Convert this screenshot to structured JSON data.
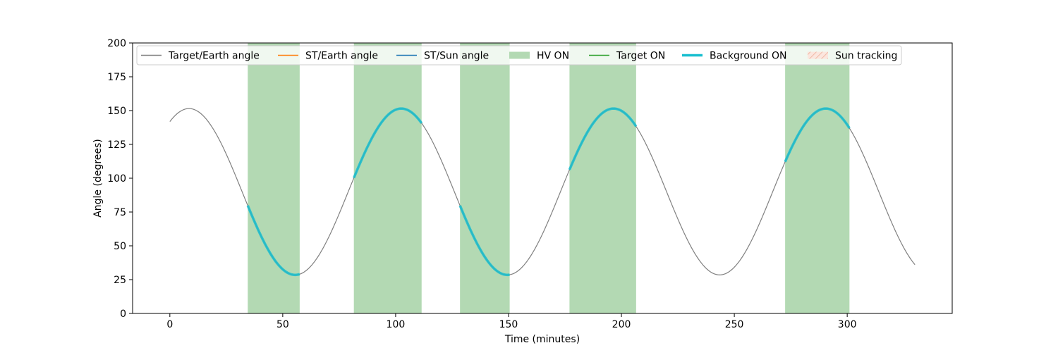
{
  "chart_data": {
    "type": "line",
    "title": "",
    "xlabel": "Time (minutes)",
    "ylabel": "Angle (degrees)",
    "xlim": [
      -16.5,
      346.5
    ],
    "ylim": [
      0,
      200
    ],
    "x_ticks": [
      0,
      50,
      100,
      150,
      200,
      250,
      300
    ],
    "y_ticks": [
      0,
      25,
      50,
      75,
      100,
      125,
      150,
      175,
      200
    ],
    "grid": false,
    "legend_position": "top",
    "legend": [
      {
        "label": "Target/Earth angle",
        "kind": "line",
        "color": "#808080"
      },
      {
        "label": "ST/Earth angle",
        "kind": "line",
        "color": "#ff7f0e"
      },
      {
        "label": "ST/Sun angle",
        "kind": "line",
        "color": "#1f77b4"
      },
      {
        "label": "HV ON",
        "kind": "patch",
        "color": "#b3d9b3"
      },
      {
        "label": "Target ON",
        "kind": "line",
        "color": "#2ca02c"
      },
      {
        "label": "Background ON",
        "kind": "thickline",
        "color": "#17becf"
      },
      {
        "label": "Sun tracking",
        "kind": "hatch",
        "color": "#f5c9b8"
      }
    ],
    "series": [
      {
        "name": "Target/Earth angle",
        "color": "#808080",
        "model": {
          "mean": 90,
          "amplitude": 61.5,
          "period_min": 94,
          "phase_peak_min": 8.5
        },
        "x": [
          0,
          8.5,
          32,
          55,
          78.5,
          102,
          125,
          149,
          172.5,
          196,
          219.5,
          243,
          266.5,
          290,
          313,
          330
        ],
        "y": [
          139,
          151.5,
          90,
          28.5,
          90,
          151.5,
          90,
          28.5,
          90,
          151.5,
          90,
          28.5,
          90,
          151.5,
          90,
          38
        ]
      }
    ],
    "hv_on_intervals": [
      [
        34.5,
        57.5
      ],
      [
        81.5,
        111.5
      ],
      [
        128.5,
        150.5
      ],
      [
        177,
        206.5
      ],
      [
        272.5,
        301
      ]
    ],
    "background_on_intervals": [
      [
        34.5,
        57.5
      ],
      [
        81.5,
        111.5
      ],
      [
        128.5,
        150.5
      ],
      [
        177,
        206.5
      ],
      [
        272.5,
        301
      ]
    ],
    "colors": {
      "target_earth": "#808080",
      "hv_on": "#b3d9b3",
      "background_on": "#17becf",
      "axis": "#000000"
    }
  }
}
